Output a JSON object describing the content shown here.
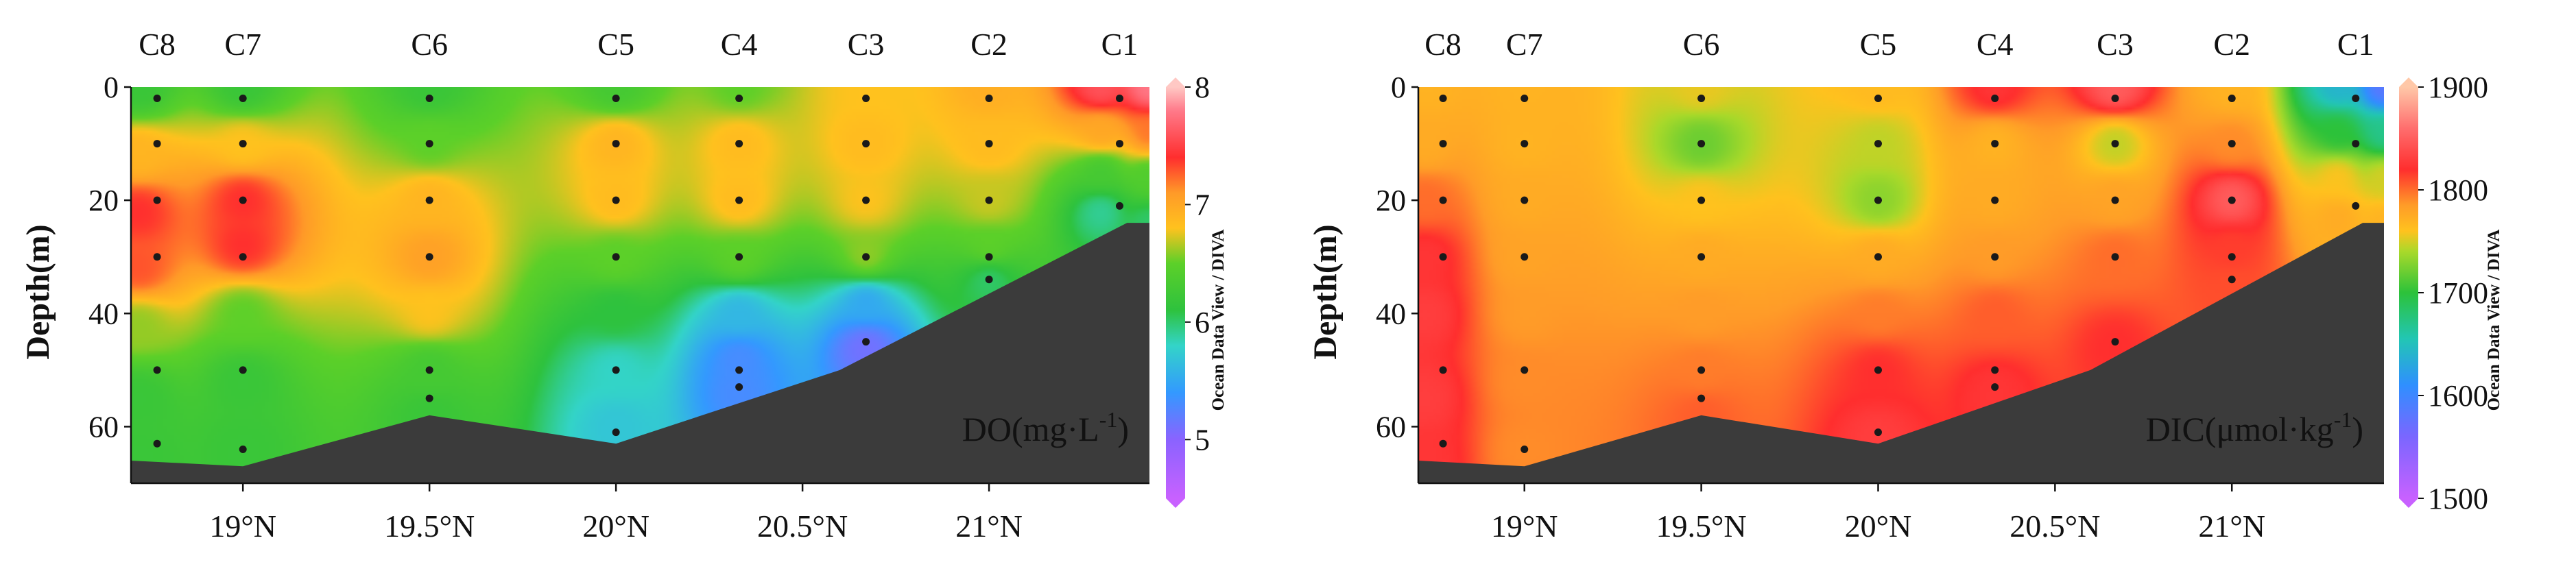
{
  "chart_data": [
    {
      "type": "heatmap",
      "id": "do",
      "title": "DO(mg·L-1)",
      "label_main": "DO(mg·L",
      "label_sup": "-1",
      "label_end": ")",
      "ylabel": "Depth(m)",
      "xlabel": "",
      "xlim": [
        18.7,
        21.43
      ],
      "ylim": [
        70,
        0
      ],
      "x_ticks": [
        19.0,
        19.5,
        20.0,
        20.5,
        21.0
      ],
      "x_tick_labels": [
        "19°N",
        "19.5°N",
        "20°N",
        "20.5°N",
        "21°N"
      ],
      "y_ticks": [
        0,
        20,
        40,
        60
      ],
      "y_tick_labels": [
        "0",
        "20",
        "40",
        "60"
      ],
      "stations": [
        {
          "name": "C8",
          "lat": 18.77,
          "depths": [
            2,
            10,
            20,
            30,
            50,
            63
          ]
        },
        {
          "name": "C7",
          "lat": 19.0,
          "depths": [
            2,
            10,
            20,
            30,
            50,
            64
          ]
        },
        {
          "name": "C6",
          "lat": 19.5,
          "depths": [
            2,
            10,
            20,
            30,
            50,
            55
          ]
        },
        {
          "name": "C5",
          "lat": 20.0,
          "depths": [
            2,
            10,
            20,
            30,
            50,
            61
          ]
        },
        {
          "name": "C4",
          "lat": 20.33,
          "depths": [
            2,
            10,
            20,
            30,
            50,
            53
          ]
        },
        {
          "name": "C3",
          "lat": 20.67,
          "depths": [
            2,
            10,
            20,
            30,
            45
          ]
        },
        {
          "name": "C2",
          "lat": 21.0,
          "depths": [
            2,
            10,
            20,
            30,
            34
          ]
        },
        {
          "name": "C1",
          "lat": 21.35,
          "depths": [
            2,
            10,
            21
          ]
        }
      ],
      "bottom_depth_profile": {
        "lat": [
          18.7,
          19.0,
          19.5,
          20.0,
          20.6,
          21.37,
          21.43
        ],
        "depth": [
          66,
          67,
          58,
          63,
          50,
          24,
          24
        ]
      },
      "colorbar": {
        "min": 4.5,
        "max": 8.0,
        "ticks": [
          5,
          6,
          7,
          8
        ],
        "tick_labels": [
          "5",
          "6",
          "7",
          "8"
        ],
        "caption": "Ocean Data View / DIVA",
        "stops": [
          {
            "v": 4.5,
            "c": "#c861ff"
          },
          {
            "v": 5.0,
            "c": "#8a63ff"
          },
          {
            "v": 5.4,
            "c": "#3399ff"
          },
          {
            "v": 5.8,
            "c": "#33d4c8"
          },
          {
            "v": 6.1,
            "c": "#2ec23e"
          },
          {
            "v": 6.5,
            "c": "#5cd029"
          },
          {
            "v": 6.8,
            "c": "#ffc21e"
          },
          {
            "v": 7.1,
            "c": "#ff9a28"
          },
          {
            "v": 7.4,
            "c": "#ff2e2e"
          },
          {
            "v": 7.8,
            "c": "#ff7a8a"
          },
          {
            "v": 8.0,
            "c": "#ffc8c4"
          }
        ]
      },
      "samples": [
        {
          "lat": 18.72,
          "depth": 0,
          "v": 6.2
        },
        {
          "lat": 18.72,
          "depth": 12,
          "v": 6.9
        },
        {
          "lat": 18.72,
          "depth": 22,
          "v": 7.4
        },
        {
          "lat": 18.72,
          "depth": 32,
          "v": 7.3
        },
        {
          "lat": 18.72,
          "depth": 42,
          "v": 6.6
        },
        {
          "lat": 18.72,
          "depth": 55,
          "v": 6.2
        },
        {
          "lat": 18.72,
          "depth": 66,
          "v": 6.2
        },
        {
          "lat": 19.0,
          "depth": 0,
          "v": 6.2
        },
        {
          "lat": 19.0,
          "depth": 10,
          "v": 6.8
        },
        {
          "lat": 19.0,
          "depth": 20,
          "v": 7.4
        },
        {
          "lat": 19.0,
          "depth": 28,
          "v": 7.4
        },
        {
          "lat": 19.0,
          "depth": 40,
          "v": 6.5
        },
        {
          "lat": 19.0,
          "depth": 52,
          "v": 6.2
        },
        {
          "lat": 19.0,
          "depth": 64,
          "v": 6.2
        },
        {
          "lat": 19.5,
          "depth": 0,
          "v": 6.2
        },
        {
          "lat": 19.5,
          "depth": 10,
          "v": 6.5
        },
        {
          "lat": 19.5,
          "depth": 20,
          "v": 6.9
        },
        {
          "lat": 19.5,
          "depth": 30,
          "v": 7.05
        },
        {
          "lat": 19.5,
          "depth": 40,
          "v": 6.8
        },
        {
          "lat": 19.5,
          "depth": 50,
          "v": 6.3
        },
        {
          "lat": 19.5,
          "depth": 58,
          "v": 6.2
        },
        {
          "lat": 20.0,
          "depth": 0,
          "v": 6.3
        },
        {
          "lat": 20.0,
          "depth": 10,
          "v": 6.9
        },
        {
          "lat": 20.0,
          "depth": 20,
          "v": 6.85
        },
        {
          "lat": 20.0,
          "depth": 30,
          "v": 6.5
        },
        {
          "lat": 20.0,
          "depth": 40,
          "v": 6.1
        },
        {
          "lat": 20.0,
          "depth": 50,
          "v": 5.8
        },
        {
          "lat": 20.0,
          "depth": 60,
          "v": 5.7
        },
        {
          "lat": 20.33,
          "depth": 0,
          "v": 6.5
        },
        {
          "lat": 20.33,
          "depth": 10,
          "v": 6.85
        },
        {
          "lat": 20.33,
          "depth": 20,
          "v": 6.85
        },
        {
          "lat": 20.33,
          "depth": 30,
          "v": 6.5
        },
        {
          "lat": 20.33,
          "depth": 40,
          "v": 5.6
        },
        {
          "lat": 20.33,
          "depth": 48,
          "v": 5.3
        },
        {
          "lat": 20.33,
          "depth": 54,
          "v": 5.3
        },
        {
          "lat": 20.67,
          "depth": 0,
          "v": 6.8
        },
        {
          "lat": 20.67,
          "depth": 10,
          "v": 6.85
        },
        {
          "lat": 20.67,
          "depth": 20,
          "v": 6.8
        },
        {
          "lat": 20.67,
          "depth": 30,
          "v": 6.6
        },
        {
          "lat": 20.67,
          "depth": 38,
          "v": 5.5
        },
        {
          "lat": 20.67,
          "depth": 46,
          "v": 5.1
        },
        {
          "lat": 21.0,
          "depth": 0,
          "v": 6.95
        },
        {
          "lat": 21.0,
          "depth": 10,
          "v": 6.85
        },
        {
          "lat": 21.0,
          "depth": 20,
          "v": 6.7
        },
        {
          "lat": 21.0,
          "depth": 28,
          "v": 6.5
        },
        {
          "lat": 21.0,
          "depth": 34,
          "v": 6.0
        },
        {
          "lat": 21.3,
          "depth": 0,
          "v": 7.6
        },
        {
          "lat": 21.3,
          "depth": 8,
          "v": 7.0
        },
        {
          "lat": 21.3,
          "depth": 15,
          "v": 6.3
        },
        {
          "lat": 21.3,
          "depth": 22,
          "v": 5.9
        },
        {
          "lat": 21.43,
          "depth": 0,
          "v": 7.8
        },
        {
          "lat": 21.43,
          "depth": 8,
          "v": 7.2
        },
        {
          "lat": 21.43,
          "depth": 16,
          "v": 6.4
        },
        {
          "lat": 21.43,
          "depth": 24,
          "v": 6.0
        }
      ]
    },
    {
      "type": "heatmap",
      "id": "dic",
      "title": "DIC(μmol·kg-1)",
      "label_main": "DIC(μmol·kg",
      "label_sup": "-1",
      "label_end": ")",
      "ylabel": "Depth(m)",
      "xlabel": "",
      "xlim": [
        18.7,
        21.43
      ],
      "ylim": [
        70,
        0
      ],
      "x_ticks": [
        19.0,
        19.5,
        20.0,
        20.5,
        21.0
      ],
      "x_tick_labels": [
        "19°N",
        "19.5°N",
        "20°N",
        "20.5°N",
        "21°N"
      ],
      "y_ticks": [
        0,
        20,
        40,
        60
      ],
      "y_tick_labels": [
        "0",
        "20",
        "40",
        "60"
      ],
      "stations": [
        {
          "name": "C8",
          "lat": 18.77,
          "depths": [
            2,
            10,
            20,
            30,
            50,
            63
          ]
        },
        {
          "name": "C7",
          "lat": 19.0,
          "depths": [
            2,
            10,
            20,
            30,
            50,
            64
          ]
        },
        {
          "name": "C6",
          "lat": 19.5,
          "depths": [
            2,
            10,
            20,
            30,
            50,
            55
          ]
        },
        {
          "name": "C5",
          "lat": 20.0,
          "depths": [
            2,
            10,
            20,
            30,
            50,
            61
          ]
        },
        {
          "name": "C4",
          "lat": 20.33,
          "depths": [
            2,
            10,
            20,
            30,
            50,
            53
          ]
        },
        {
          "name": "C3",
          "lat": 20.67,
          "depths": [
            2,
            10,
            20,
            30,
            45
          ]
        },
        {
          "name": "C2",
          "lat": 21.0,
          "depths": [
            2,
            10,
            20,
            30,
            34
          ]
        },
        {
          "name": "C1",
          "lat": 21.35,
          "depths": [
            2,
            10,
            21
          ]
        }
      ],
      "bottom_depth_profile": {
        "lat": [
          18.7,
          19.0,
          19.5,
          20.0,
          20.6,
          21.37,
          21.43
        ],
        "depth": [
          66,
          67,
          58,
          63,
          50,
          24,
          24
        ]
      },
      "colorbar": {
        "min": 1500,
        "max": 1900,
        "ticks": [
          1500,
          1600,
          1700,
          1800,
          1900
        ],
        "tick_labels": [
          "1500",
          "1600",
          "1700",
          "1800",
          "1900"
        ],
        "caption": "Ocean Data View / DIVA",
        "stops": [
          {
            "v": 1500,
            "c": "#c861ff"
          },
          {
            "v": 1560,
            "c": "#7a66ff"
          },
          {
            "v": 1610,
            "c": "#2f8fff"
          },
          {
            "v": 1655,
            "c": "#22c6b4"
          },
          {
            "v": 1700,
            "c": "#2cc23a"
          },
          {
            "v": 1740,
            "c": "#a9d92a"
          },
          {
            "v": 1760,
            "c": "#ffc21e"
          },
          {
            "v": 1785,
            "c": "#ff9c28"
          },
          {
            "v": 1820,
            "c": "#ff2e2e"
          },
          {
            "v": 1860,
            "c": "#ff6e6e"
          },
          {
            "v": 1900,
            "c": "#ffc8a8"
          }
        ]
      },
      "samples": [
        {
          "lat": 18.72,
          "depth": 0,
          "v": 1770
        },
        {
          "lat": 18.72,
          "depth": 10,
          "v": 1775
        },
        {
          "lat": 18.72,
          "depth": 20,
          "v": 1800
        },
        {
          "lat": 18.72,
          "depth": 30,
          "v": 1825
        },
        {
          "lat": 18.72,
          "depth": 40,
          "v": 1830
        },
        {
          "lat": 18.72,
          "depth": 55,
          "v": 1830
        },
        {
          "lat": 18.72,
          "depth": 66,
          "v": 1825
        },
        {
          "lat": 19.0,
          "depth": 0,
          "v": 1770
        },
        {
          "lat": 19.0,
          "depth": 10,
          "v": 1770
        },
        {
          "lat": 19.0,
          "depth": 20,
          "v": 1775
        },
        {
          "lat": 19.0,
          "depth": 30,
          "v": 1780
        },
        {
          "lat": 19.0,
          "depth": 40,
          "v": 1785
        },
        {
          "lat": 19.0,
          "depth": 52,
          "v": 1790
        },
        {
          "lat": 19.0,
          "depth": 64,
          "v": 1790
        },
        {
          "lat": 19.5,
          "depth": 0,
          "v": 1755
        },
        {
          "lat": 19.5,
          "depth": 10,
          "v": 1720
        },
        {
          "lat": 19.5,
          "depth": 20,
          "v": 1760
        },
        {
          "lat": 19.5,
          "depth": 30,
          "v": 1775
        },
        {
          "lat": 19.5,
          "depth": 40,
          "v": 1785
        },
        {
          "lat": 19.5,
          "depth": 50,
          "v": 1795
        },
        {
          "lat": 19.5,
          "depth": 58,
          "v": 1805
        },
        {
          "lat": 20.0,
          "depth": 0,
          "v": 1765
        },
        {
          "lat": 20.0,
          "depth": 10,
          "v": 1745
        },
        {
          "lat": 20.0,
          "depth": 20,
          "v": 1730
        },
        {
          "lat": 20.0,
          "depth": 30,
          "v": 1775
        },
        {
          "lat": 20.0,
          "depth": 40,
          "v": 1795
        },
        {
          "lat": 20.0,
          "depth": 50,
          "v": 1820
        },
        {
          "lat": 20.0,
          "depth": 62,
          "v": 1830
        },
        {
          "lat": 20.33,
          "depth": 0,
          "v": 1825
        },
        {
          "lat": 20.33,
          "depth": 10,
          "v": 1770
        },
        {
          "lat": 20.33,
          "depth": 20,
          "v": 1775
        },
        {
          "lat": 20.33,
          "depth": 30,
          "v": 1785
        },
        {
          "lat": 20.33,
          "depth": 40,
          "v": 1805
        },
        {
          "lat": 20.33,
          "depth": 54,
          "v": 1825
        },
        {
          "lat": 20.67,
          "depth": 0,
          "v": 1850
        },
        {
          "lat": 20.67,
          "depth": 10,
          "v": 1745
        },
        {
          "lat": 20.67,
          "depth": 20,
          "v": 1780
        },
        {
          "lat": 20.67,
          "depth": 30,
          "v": 1800
        },
        {
          "lat": 20.67,
          "depth": 46,
          "v": 1820
        },
        {
          "lat": 21.0,
          "depth": 0,
          "v": 1770
        },
        {
          "lat": 21.0,
          "depth": 10,
          "v": 1790
        },
        {
          "lat": 21.0,
          "depth": 20,
          "v": 1850
        },
        {
          "lat": 21.0,
          "depth": 28,
          "v": 1815
        },
        {
          "lat": 21.0,
          "depth": 36,
          "v": 1810
        },
        {
          "lat": 21.3,
          "depth": 0,
          "v": 1640
        },
        {
          "lat": 21.3,
          "depth": 8,
          "v": 1700
        },
        {
          "lat": 21.3,
          "depth": 16,
          "v": 1760
        },
        {
          "lat": 21.3,
          "depth": 23,
          "v": 1775
        },
        {
          "lat": 21.43,
          "depth": 0,
          "v": 1580
        },
        {
          "lat": 21.43,
          "depth": 8,
          "v": 1670
        },
        {
          "lat": 21.43,
          "depth": 16,
          "v": 1750
        },
        {
          "lat": 21.43,
          "depth": 24,
          "v": 1770
        }
      ]
    }
  ]
}
